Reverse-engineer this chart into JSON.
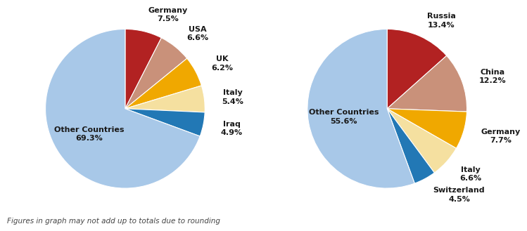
{
  "chart1": {
    "labels": [
      "Germany",
      "USA",
      "UK",
      "Italy",
      "Iraq",
      "Other Countries"
    ],
    "values": [
      7.5,
      6.6,
      6.2,
      5.4,
      4.9,
      69.3
    ],
    "colors": [
      "#b22222",
      "#c9917a",
      "#f0a800",
      "#f5e0a0",
      "#2278b5",
      "#a8c8e8"
    ],
    "startangle": 90,
    "label_positions": [
      {
        "text": "Germany\n7.5%",
        "r": 1.22,
        "ha": "center"
      },
      {
        "text": "USA\n6.6%",
        "r": 1.22,
        "ha": "left"
      },
      {
        "text": "UK\n6.2%",
        "r": 1.22,
        "ha": "left"
      },
      {
        "text": "Italy\n5.4%",
        "r": 1.22,
        "ha": "left"
      },
      {
        "text": "Iraq\n4.9%",
        "r": 1.22,
        "ha": "left"
      },
      {
        "text": "Other Countries\n69.3%",
        "r": 0.6,
        "ha": "center"
      }
    ]
  },
  "chart2": {
    "labels": [
      "Russia",
      "China",
      "Germany",
      "Italy",
      "Switzerland",
      "Other Countries"
    ],
    "values": [
      13.4,
      12.2,
      7.7,
      6.6,
      4.5,
      55.6
    ],
    "colors": [
      "#b22222",
      "#c9917a",
      "#f0a800",
      "#f5e0a0",
      "#2278b5",
      "#a8c8e8"
    ],
    "startangle": 90,
    "label_positions": [
      {
        "text": "Russia\n13.4%",
        "r": 1.22,
        "ha": "center"
      },
      {
        "text": "China\n12.2%",
        "r": 1.22,
        "ha": "left"
      },
      {
        "text": "Germany\n7.7%",
        "r": 1.22,
        "ha": "left"
      },
      {
        "text": "Italy\n6.6%",
        "r": 1.22,
        "ha": "left"
      },
      {
        "text": "Switzerland\n4.5%",
        "r": 1.22,
        "ha": "center"
      },
      {
        "text": "Other Countries\n55.6%",
        "r": 0.55,
        "ha": "center"
      }
    ]
  },
  "footnote": "Figures in graph may not add up to totals due to rounding",
  "footnote_fontsize": 7.5,
  "label_fontsize": 8,
  "background_color": "#ffffff"
}
